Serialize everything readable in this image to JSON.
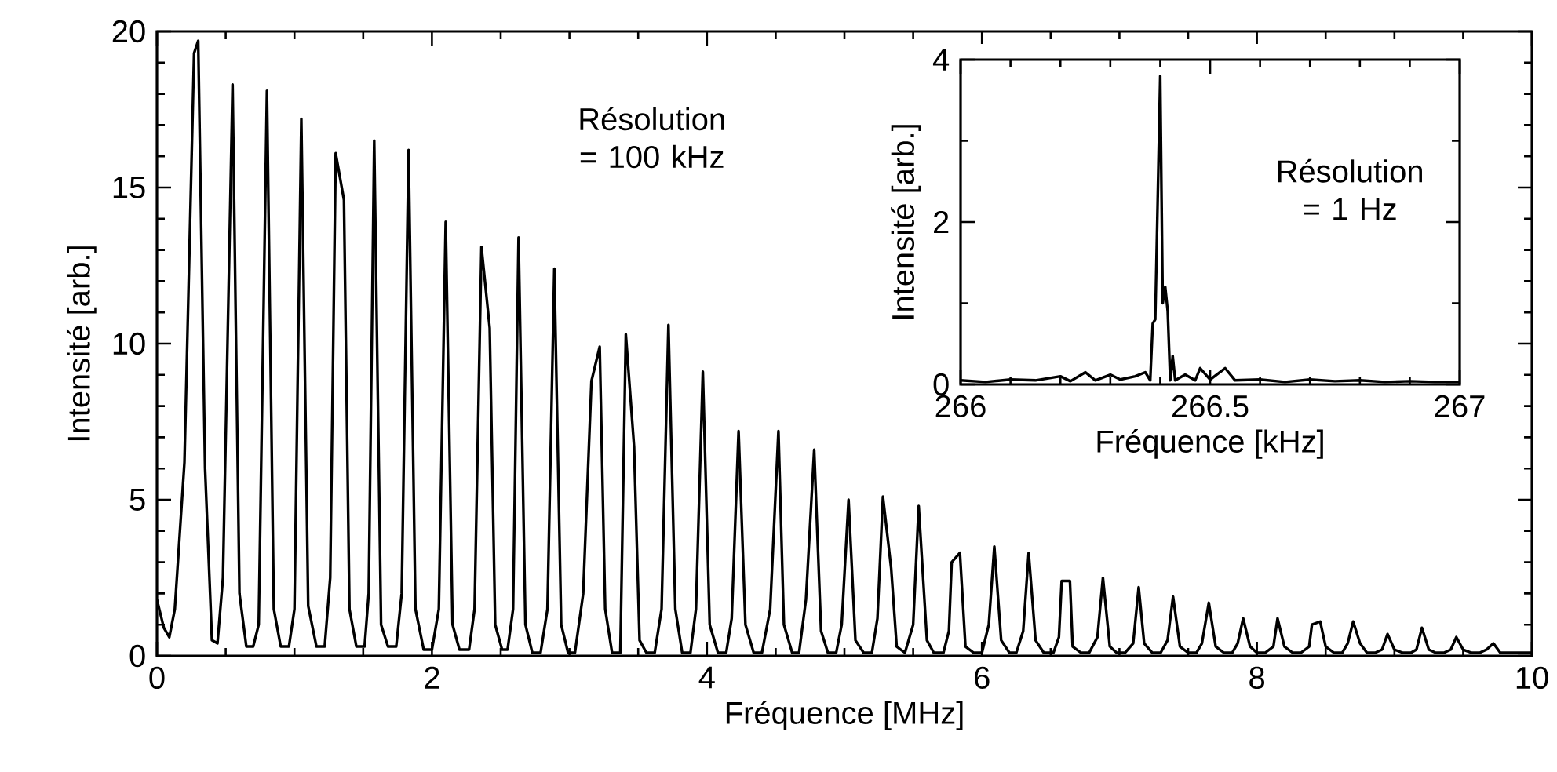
{
  "chart_data": [
    {
      "type": "line",
      "xlabel": "Fréquence [MHz]",
      "ylabel": "Intensité [arb.]",
      "xlim": [
        0,
        10
      ],
      "ylim": [
        0,
        20
      ],
      "xticks": [
        0,
        2,
        4,
        6,
        8,
        10
      ],
      "yticks": [
        0,
        5,
        10,
        15,
        20
      ],
      "color": "#000000",
      "annotations": [
        "Résolution = 100 kHz"
      ],
      "x": [
        0,
        0.05,
        0.09,
        0.13,
        0.2,
        0.27,
        0.3,
        0.35,
        0.4,
        0.44,
        0.48,
        0.55,
        0.6,
        0.65,
        0.7,
        0.74,
        0.8,
        0.85,
        0.9,
        0.96,
        1,
        1.05,
        1.1,
        1.16,
        1.22,
        1.26,
        1.3,
        1.36,
        1.4,
        1.45,
        1.51,
        1.54,
        1.58,
        1.63,
        1.68,
        1.74,
        1.78,
        1.83,
        1.88,
        1.94,
        2,
        2.05,
        2.1,
        2.15,
        2.2,
        2.27,
        2.31,
        2.36,
        2.42,
        2.46,
        2.51,
        2.55,
        2.59,
        2.63,
        2.68,
        2.73,
        2.79,
        2.84,
        2.89,
        2.94,
        2.99,
        3.04,
        3.1,
        3.16,
        3.22,
        3.26,
        3.31,
        3.37,
        3.41,
        3.47,
        3.51,
        3.56,
        3.62,
        3.67,
        3.72,
        3.77,
        3.82,
        3.88,
        3.92,
        3.97,
        4.02,
        4.08,
        4.14,
        4.18,
        4.23,
        4.28,
        4.34,
        4.4,
        4.46,
        4.52,
        4.56,
        4.62,
        4.67,
        4.72,
        4.78,
        4.83,
        4.88,
        4.94,
        4.98,
        5.03,
        5.08,
        5.14,
        5.2,
        5.24,
        5.28,
        5.34,
        5.38,
        5.44,
        5.5,
        5.54,
        5.6,
        5.65,
        5.72,
        5.76,
        5.78,
        5.84,
        5.88,
        5.94,
        6,
        6.05,
        6.09,
        6.14,
        6.2,
        6.25,
        6.3,
        6.34,
        6.39,
        6.45,
        6.52,
        6.56,
        6.58,
        6.64,
        6.66,
        6.72,
        6.78,
        6.84,
        6.88,
        6.93,
        6.98,
        7.04,
        7.1,
        7.14,
        7.18,
        7.24,
        7.3,
        7.35,
        7.39,
        7.44,
        7.5,
        7.56,
        7.6,
        7.65,
        7.7,
        7.76,
        7.82,
        7.86,
        7.9,
        7.95,
        8,
        8.06,
        8.12,
        8.15,
        8.2,
        8.26,
        8.32,
        8.38,
        8.4,
        8.46,
        8.5,
        8.56,
        8.62,
        8.66,
        8.7,
        8.75,
        8.8,
        8.86,
        8.91,
        8.95,
        9,
        9.06,
        9.12,
        9.16,
        9.2,
        9.25,
        9.3,
        9.36,
        9.41,
        9.45,
        9.5,
        9.56,
        9.62,
        9.67,
        9.72,
        9.77,
        9.85,
        9.95,
        10
      ],
      "values": [
        1.8,
        0.9,
        0.6,
        1.5,
        6.2,
        19.3,
        19.7,
        6.0,
        0.5,
        0.4,
        2.5,
        18.3,
        2.0,
        0.3,
        0.3,
        1.0,
        18.1,
        1.5,
        0.3,
        0.3,
        1.5,
        17.2,
        1.6,
        0.3,
        0.3,
        2.5,
        16.1,
        14.6,
        1.5,
        0.3,
        0.3,
        2.0,
        16.5,
        1.0,
        0.3,
        0.3,
        2.0,
        16.2,
        1.5,
        0.2,
        0.2,
        1.5,
        13.9,
        1.0,
        0.2,
        0.2,
        1.5,
        13.1,
        10.5,
        1.0,
        0.2,
        0.2,
        1.5,
        13.4,
        1.0,
        0.1,
        0.1,
        1.5,
        12.4,
        1.0,
        0.1,
        0.1,
        2.0,
        8.8,
        9.9,
        1.5,
        0.1,
        0.1,
        10.3,
        6.7,
        0.5,
        0.1,
        0.1,
        1.5,
        10.6,
        1.5,
        0.1,
        0.1,
        1.5,
        9.1,
        1.0,
        0.1,
        0.1,
        1.2,
        7.2,
        1.0,
        0.1,
        0.1,
        1.5,
        7.2,
        1.0,
        0.1,
        0.1,
        1.8,
        6.6,
        0.8,
        0.1,
        0.1,
        1.0,
        5.0,
        0.5,
        0.1,
        0.1,
        1.2,
        5.1,
        2.8,
        0.3,
        0.1,
        1.0,
        4.8,
        0.5,
        0.1,
        0.1,
        0.8,
        3.0,
        3.3,
        0.3,
        0.1,
        0.1,
        1.0,
        3.5,
        0.5,
        0.1,
        0.1,
        0.8,
        3.3,
        0.5,
        0.1,
        0.1,
        0.6,
        2.4,
        2.4,
        0.3,
        0.1,
        0.1,
        0.6,
        2.5,
        0.3,
        0.1,
        0.1,
        0.4,
        2.2,
        0.4,
        0.1,
        0.1,
        0.5,
        1.9,
        0.3,
        0.1,
        0.1,
        0.4,
        1.7,
        0.3,
        0.1,
        0.1,
        0.4,
        1.2,
        0.3,
        0.1,
        0.1,
        0.3,
        1.2,
        0.3,
        0.1,
        0.1,
        0.3,
        1.0,
        1.1,
        0.3,
        0.1,
        0.1,
        0.4,
        1.1,
        0.4,
        0.1,
        0.1,
        0.2,
        0.7,
        0.2,
        0.1,
        0.1,
        0.2,
        0.9,
        0.2,
        0.1,
        0.1,
        0.2,
        0.6,
        0.2,
        0.1,
        0.1,
        0.2,
        0.4,
        0.1,
        0.1,
        0.1,
        0.1
      ]
    },
    {
      "type": "line",
      "xlabel": "Fréquence [kHz]",
      "ylabel": "Intensité [arb.]",
      "xlim": [
        266,
        267
      ],
      "ylim": [
        0,
        4
      ],
      "xticks": [
        266,
        266.5,
        267
      ],
      "yticks": [
        0,
        2,
        4
      ],
      "color": "#000000",
      "annotations": [
        "Résolution = 1 Hz"
      ],
      "x": [
        266.0,
        266.05,
        266.1,
        266.15,
        266.2,
        266.22,
        266.25,
        266.27,
        266.3,
        266.32,
        266.35,
        266.37,
        266.38,
        266.385,
        266.39,
        266.4,
        266.405,
        266.41,
        266.415,
        266.42,
        266.425,
        266.43,
        266.45,
        266.47,
        266.48,
        266.5,
        266.53,
        266.55,
        266.6,
        266.65,
        266.7,
        266.75,
        266.8,
        266.85,
        266.9,
        266.95,
        267.0
      ],
      "values": [
        0.05,
        0.03,
        0.06,
        0.05,
        0.1,
        0.04,
        0.15,
        0.05,
        0.12,
        0.06,
        0.1,
        0.15,
        0.05,
        0.75,
        0.8,
        3.8,
        1.0,
        1.2,
        0.9,
        0.05,
        0.35,
        0.05,
        0.12,
        0.05,
        0.2,
        0.06,
        0.2,
        0.05,
        0.06,
        0.03,
        0.06,
        0.04,
        0.05,
        0.03,
        0.04,
        0.03,
        0.03
      ]
    }
  ]
}
